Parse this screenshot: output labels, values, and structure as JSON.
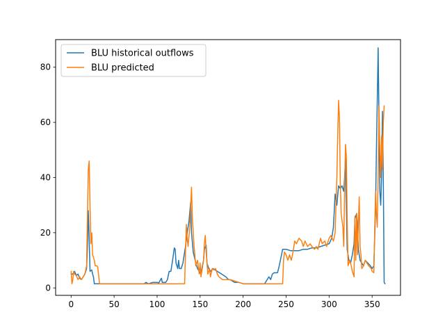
{
  "chart_data": {
    "type": "line",
    "title": "",
    "xlabel": "",
    "ylabel": "",
    "xlim": [
      -18,
      383
    ],
    "ylim": [
      -2.7,
      90
    ],
    "xticks": [
      0,
      50,
      100,
      150,
      200,
      250,
      300,
      350
    ],
    "yticks": [
      0,
      20,
      40,
      60,
      80
    ],
    "grid": false,
    "legend_placement": "upper-left",
    "series": [
      {
        "name": "BLU historical outflows",
        "color": "#1f77b4",
        "points": [
          [
            0,
            5
          ],
          [
            2,
            5
          ],
          [
            4,
            6
          ],
          [
            6,
            4.5
          ],
          [
            8,
            5
          ],
          [
            10,
            3.5
          ],
          [
            12,
            3
          ],
          [
            14,
            4
          ],
          [
            16,
            5
          ],
          [
            18,
            7
          ],
          [
            19,
            15
          ],
          [
            20,
            28
          ],
          [
            21,
            18
          ],
          [
            22,
            6
          ],
          [
            24,
            6.5
          ],
          [
            25,
            5
          ],
          [
            26,
            4
          ],
          [
            27,
            1.5
          ],
          [
            30,
            1.5
          ],
          [
            35,
            1.5
          ],
          [
            40,
            1.5
          ],
          [
            45,
            1.5
          ],
          [
            50,
            1.5
          ],
          [
            55,
            1.5
          ],
          [
            60,
            1.5
          ],
          [
            70,
            1.5
          ],
          [
            80,
            1.5
          ],
          [
            85,
            1.5
          ],
          [
            87,
            2
          ],
          [
            90,
            1.5
          ],
          [
            95,
            2
          ],
          [
            100,
            2
          ],
          [
            102,
            1.8
          ],
          [
            104,
            3
          ],
          [
            105,
            3.5
          ],
          [
            106,
            2
          ],
          [
            110,
            2
          ],
          [
            112,
            3
          ],
          [
            114,
            6
          ],
          [
            116,
            6
          ],
          [
            118,
            10
          ],
          [
            120,
            14.5
          ],
          [
            121,
            14
          ],
          [
            122,
            9
          ],
          [
            124,
            7
          ],
          [
            125,
            10
          ],
          [
            126,
            7
          ],
          [
            128,
            7
          ],
          [
            130,
            9
          ],
          [
            133,
            15
          ],
          [
            135,
            20
          ],
          [
            137,
            24
          ],
          [
            139,
            31
          ],
          [
            140,
            20
          ],
          [
            142,
            13
          ],
          [
            145,
            9
          ],
          [
            147,
            7
          ],
          [
            149,
            6
          ],
          [
            151,
            5
          ],
          [
            152,
            7
          ],
          [
            154,
            10
          ],
          [
            155,
            14
          ],
          [
            157,
            15.5
          ],
          [
            158,
            9
          ],
          [
            160,
            7
          ],
          [
            162,
            6
          ],
          [
            165,
            7
          ],
          [
            170,
            6
          ],
          [
            175,
            5
          ],
          [
            180,
            4
          ],
          [
            183,
            3
          ],
          [
            185,
            3
          ],
          [
            190,
            2
          ],
          [
            195,
            2
          ],
          [
            200,
            1.5
          ],
          [
            205,
            1.5
          ],
          [
            210,
            1.5
          ],
          [
            215,
            1.5
          ],
          [
            220,
            1.5
          ],
          [
            225,
            1.5
          ],
          [
            228,
            3
          ],
          [
            230,
            4
          ],
          [
            232,
            3
          ],
          [
            234,
            5
          ],
          [
            236,
            5.5
          ],
          [
            240,
            5.5
          ],
          [
            242,
            8
          ],
          [
            244,
            11
          ],
          [
            246,
            14
          ],
          [
            250,
            14
          ],
          [
            255,
            13.5
          ],
          [
            260,
            13.5
          ],
          [
            265,
            13.5
          ],
          [
            270,
            14
          ],
          [
            275,
            14
          ],
          [
            280,
            14.5
          ],
          [
            285,
            14.5
          ],
          [
            290,
            15
          ],
          [
            295,
            15.5
          ],
          [
            300,
            16
          ],
          [
            303,
            18
          ],
          [
            305,
            22
          ],
          [
            307,
            34
          ],
          [
            309,
            30
          ],
          [
            311,
            37
          ],
          [
            313,
            36
          ],
          [
            315,
            37
          ],
          [
            317,
            35
          ],
          [
            318,
            40
          ],
          [
            319,
            47
          ],
          [
            320,
            30
          ],
          [
            321,
            14
          ],
          [
            323,
            10
          ],
          [
            325,
            9
          ],
          [
            327,
            12
          ],
          [
            329,
            16
          ],
          [
            330,
            25
          ],
          [
            332,
            27
          ],
          [
            333,
            23
          ],
          [
            334,
            14
          ],
          [
            336,
            10
          ],
          [
            338,
            9
          ],
          [
            340,
            8
          ],
          [
            342,
            10
          ],
          [
            345,
            9
          ],
          [
            348,
            8
          ],
          [
            350,
            7
          ],
          [
            352,
            8
          ],
          [
            354,
            29
          ],
          [
            355,
            50
          ],
          [
            356,
            68
          ],
          [
            357,
            87
          ],
          [
            358,
            60
          ],
          [
            359,
            35
          ],
          [
            360,
            30
          ],
          [
            361,
            40
          ],
          [
            362,
            64
          ],
          [
            363,
            40
          ],
          [
            364,
            2
          ],
          [
            365,
            1.5
          ]
        ]
      },
      {
        "name": "BLU predicted",
        "color": "#ff7f0e",
        "points": [
          [
            0,
            6
          ],
          [
            1,
            1.5
          ],
          [
            2,
            3
          ],
          [
            3,
            6
          ],
          [
            4,
            5
          ],
          [
            6,
            4.5
          ],
          [
            8,
            3
          ],
          [
            10,
            4
          ],
          [
            12,
            3
          ],
          [
            14,
            4
          ],
          [
            16,
            5
          ],
          [
            18,
            8
          ],
          [
            19,
            26
          ],
          [
            20,
            43
          ],
          [
            21,
            46
          ],
          [
            22,
            30
          ],
          [
            23,
            16
          ],
          [
            24,
            20
          ],
          [
            25,
            12
          ],
          [
            27,
            10
          ],
          [
            28,
            8
          ],
          [
            30,
            8
          ],
          [
            31,
            7.5
          ],
          [
            33,
            1.5
          ],
          [
            40,
            1.5
          ],
          [
            50,
            1.5
          ],
          [
            60,
            1.5
          ],
          [
            70,
            1.5
          ],
          [
            80,
            1.5
          ],
          [
            90,
            1.5
          ],
          [
            100,
            1.5
          ],
          [
            110,
            1.5
          ],
          [
            120,
            1.5
          ],
          [
            130,
            1.5
          ],
          [
            132,
            1.5
          ],
          [
            133,
            13
          ],
          [
            134,
            23
          ],
          [
            135,
            18
          ],
          [
            136,
            15
          ],
          [
            138,
            22
          ],
          [
            140,
            36.5
          ],
          [
            141,
            25
          ],
          [
            143,
            15
          ],
          [
            145,
            8
          ],
          [
            147,
            10
          ],
          [
            149,
            5
          ],
          [
            150,
            9
          ],
          [
            151,
            4
          ],
          [
            152,
            6
          ],
          [
            154,
            10
          ],
          [
            155,
            16
          ],
          [
            156,
            19
          ],
          [
            157,
            13
          ],
          [
            159,
            5
          ],
          [
            161,
            7
          ],
          [
            162,
            4
          ],
          [
            164,
            7
          ],
          [
            166,
            6.5
          ],
          [
            168,
            7
          ],
          [
            170,
            5
          ],
          [
            172,
            4
          ],
          [
            174,
            3.5
          ],
          [
            176,
            3
          ],
          [
            180,
            3
          ],
          [
            185,
            3
          ],
          [
            190,
            2.5
          ],
          [
            195,
            2
          ],
          [
            200,
            1.5
          ],
          [
            210,
            1.5
          ],
          [
            220,
            1.5
          ],
          [
            230,
            1.5
          ],
          [
            240,
            1.5
          ],
          [
            246,
            1.5
          ],
          [
            247,
            10
          ],
          [
            248,
            13
          ],
          [
            250,
            12
          ],
          [
            252,
            10
          ],
          [
            254,
            12
          ],
          [
            256,
            10
          ],
          [
            258,
            13
          ],
          [
            260,
            17
          ],
          [
            262,
            16
          ],
          [
            265,
            18
          ],
          [
            268,
            17
          ],
          [
            270,
            15
          ],
          [
            272,
            17
          ],
          [
            275,
            15
          ],
          [
            278,
            16
          ],
          [
            280,
            15
          ],
          [
            283,
            14
          ],
          [
            285,
            15
          ],
          [
            287,
            14
          ],
          [
            290,
            18
          ],
          [
            292,
            16
          ],
          [
            295,
            17
          ],
          [
            297,
            15
          ],
          [
            300,
            18
          ],
          [
            302,
            19
          ],
          [
            305,
            17
          ],
          [
            307,
            20
          ],
          [
            309,
            40
          ],
          [
            310,
            55
          ],
          [
            311,
            68
          ],
          [
            312,
            62
          ],
          [
            313,
            38
          ],
          [
            314,
            27
          ],
          [
            316,
            22
          ],
          [
            317,
            15
          ],
          [
            318,
            35
          ],
          [
            319,
            52
          ],
          [
            320,
            48
          ],
          [
            321,
            25
          ],
          [
            322,
            8
          ],
          [
            324,
            10
          ],
          [
            325,
            9
          ],
          [
            327,
            6
          ],
          [
            329,
            4
          ],
          [
            330,
            26
          ],
          [
            331,
            10
          ],
          [
            332,
            27
          ],
          [
            333,
            12
          ],
          [
            334,
            23
          ],
          [
            335,
            33
          ],
          [
            336,
            15
          ],
          [
            337,
            12
          ],
          [
            338,
            7
          ],
          [
            340,
            8
          ],
          [
            342,
            10
          ],
          [
            344,
            9
          ],
          [
            346,
            8
          ],
          [
            349,
            7
          ],
          [
            350,
            6
          ],
          [
            352,
            5.5
          ],
          [
            353,
            21
          ],
          [
            354,
            35
          ],
          [
            355,
            27
          ],
          [
            356,
            22
          ],
          [
            357,
            40
          ],
          [
            358,
            66
          ],
          [
            359,
            50
          ],
          [
            360,
            40
          ],
          [
            361,
            55
          ],
          [
            362,
            43
          ],
          [
            363,
            60
          ],
          [
            364,
            66
          ]
        ]
      }
    ]
  }
}
